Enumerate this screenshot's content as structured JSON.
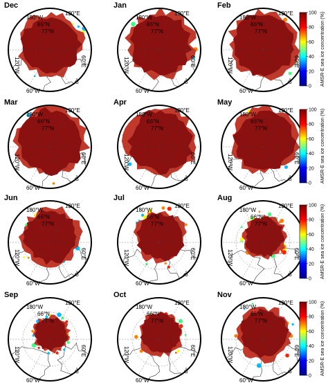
{
  "chart_data": {
    "type": "heatmap",
    "projection": "north polar stereographic",
    "value_range": [
      0,
      100
    ],
    "colorbar": {
      "label": "AMSR-E sea ice concentration (%)",
      "ticks": [
        "0",
        "20",
        "40",
        "60",
        "80",
        "100"
      ],
      "colormap": [
        "#00008f",
        "#0000ff",
        "#00ffff",
        "#ffff00",
        "#ff0000",
        "#800000"
      ]
    },
    "map_labels": {
      "lon_180": "180°W",
      "lon_120e": "120°E",
      "lon_60e": "60°E",
      "lon_120w": "120°W",
      "lon_60w": "60°W",
      "lon_0": "0°",
      "lat_66": "66°N",
      "lat_77": "77°N"
    },
    "panels": [
      {
        "month": "Dec",
        "ice_extent": 0.74,
        "edge_mix": 0.15
      },
      {
        "month": "Jan",
        "ice_extent": 0.78,
        "edge_mix": 0.12
      },
      {
        "month": "Feb",
        "ice_extent": 0.8,
        "edge_mix": 0.12
      },
      {
        "month": "Mar",
        "ice_extent": 0.82,
        "edge_mix": 0.1
      },
      {
        "month": "Apr",
        "ice_extent": 0.81,
        "edge_mix": 0.1
      },
      {
        "month": "May",
        "ice_extent": 0.76,
        "edge_mix": 0.18
      },
      {
        "month": "Jun",
        "ice_extent": 0.68,
        "edge_mix": 0.3
      },
      {
        "month": "Jul",
        "ice_extent": 0.6,
        "edge_mix": 0.55
      },
      {
        "month": "Aug",
        "ice_extent": 0.5,
        "edge_mix": 0.6
      },
      {
        "month": "Sep",
        "ice_extent": 0.42,
        "edge_mix": 0.45
      },
      {
        "month": "Oct",
        "ice_extent": 0.52,
        "edge_mix": 0.35
      },
      {
        "month": "Nov",
        "ice_extent": 0.62,
        "edge_mix": 0.25
      }
    ],
    "colors": {
      "ice_core": "#8b1010",
      "ice_mid": "#c0392b",
      "land": "#ffffff",
      "coast": "#333333",
      "grid": "#444444"
    }
  }
}
